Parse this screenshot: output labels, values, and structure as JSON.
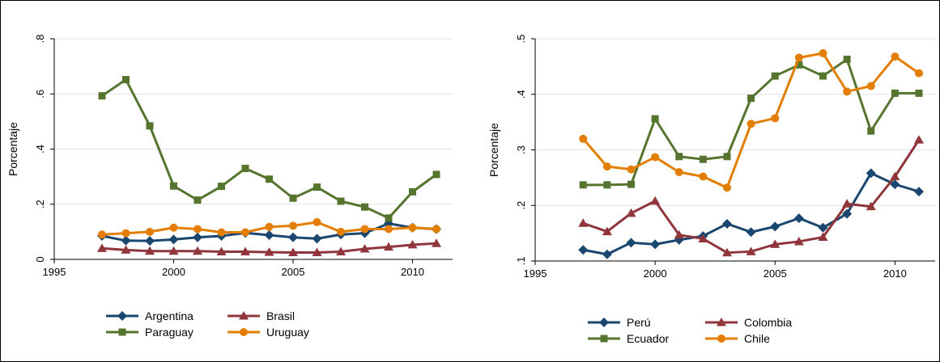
{
  "chart_data": [
    {
      "type": "line",
      "title": "",
      "xlabel": "",
      "ylabel": "Porcentaje",
      "xlim": [
        1995,
        2011
      ],
      "ylim": [
        0,
        0.8
      ],
      "x_ticks": [
        1995,
        2000,
        2005,
        2010
      ],
      "x_tick_labels": [
        "1995",
        "2000",
        "2005",
        "2010"
      ],
      "y_ticks": [
        0,
        0.2,
        0.4,
        0.6,
        0.8
      ],
      "y_tick_labels": [
        "0",
        ".2",
        ".4",
        ".6",
        ".8"
      ],
      "grid": true,
      "legend_position": "bottom",
      "x": [
        1997,
        1998,
        1999,
        2000,
        2001,
        2002,
        2003,
        2004,
        2005,
        2006,
        2007,
        2008,
        2009,
        2010,
        2011
      ],
      "series": [
        {
          "name": "Argentina",
          "color": "#1a476f",
          "marker": "diamond",
          "values": [
            0.085,
            0.068,
            0.067,
            0.072,
            0.08,
            0.085,
            0.096,
            0.088,
            0.08,
            0.075,
            0.09,
            0.095,
            0.13,
            0.115,
            0.11
          ]
        },
        {
          "name": "Brasil",
          "color": "#90353b",
          "marker": "triangle",
          "values": [
            0.04,
            0.034,
            0.03,
            0.03,
            0.03,
            0.028,
            0.028,
            0.026,
            0.025,
            0.025,
            0.028,
            0.038,
            0.045,
            0.053,
            0.058
          ]
        },
        {
          "name": "Paraguay",
          "color": "#55752f",
          "marker": "square",
          "values": [
            0.593,
            0.652,
            0.484,
            0.266,
            0.215,
            0.265,
            0.33,
            0.291,
            0.222,
            0.262,
            0.211,
            0.19,
            0.15,
            0.245,
            0.308
          ]
        },
        {
          "name": "Uruguay",
          "color": "#e37e00",
          "marker": "circle",
          "values": [
            0.09,
            0.095,
            0.1,
            0.115,
            0.11,
            0.098,
            0.098,
            0.118,
            0.122,
            0.135,
            0.1,
            0.11,
            0.11,
            0.115,
            0.11
          ]
        }
      ]
    },
    {
      "type": "line",
      "title": "",
      "xlabel": "",
      "ylabel": "Porcentaje",
      "xlim": [
        1995,
        2011
      ],
      "ylim": [
        0.1,
        0.5
      ],
      "x_ticks": [
        1995,
        2000,
        2005,
        2010
      ],
      "x_tick_labels": [
        "1995",
        "2000",
        "2005",
        "2010"
      ],
      "y_ticks": [
        0.1,
        0.2,
        0.3,
        0.4,
        0.5
      ],
      "y_tick_labels": [
        ".1",
        ".2",
        ".3",
        ".4",
        ".5"
      ],
      "grid": true,
      "legend_position": "bottom",
      "x": [
        1997,
        1998,
        1999,
        2000,
        2001,
        2002,
        2003,
        2004,
        2005,
        2006,
        2007,
        2008,
        2009,
        2010,
        2011
      ],
      "series": [
        {
          "name": "Perú",
          "color": "#1a476f",
          "marker": "diamond",
          "values": [
            0.12,
            0.112,
            0.133,
            0.13,
            0.138,
            0.145,
            0.167,
            0.152,
            0.162,
            0.177,
            0.16,
            0.185,
            0.258,
            0.238,
            0.225
          ]
        },
        {
          "name": "Colombia",
          "color": "#90353b",
          "marker": "triangle",
          "values": [
            0.168,
            0.153,
            0.186,
            0.208,
            0.147,
            0.14,
            0.115,
            0.117,
            0.13,
            0.135,
            0.143,
            0.203,
            0.198,
            0.252,
            0.318
          ]
        },
        {
          "name": "Ecuador",
          "color": "#55752f",
          "marker": "square",
          "values": [
            0.237,
            0.237,
            0.238,
            0.356,
            0.288,
            0.283,
            0.288,
            0.393,
            0.433,
            0.453,
            0.433,
            0.463,
            0.334,
            0.402,
            0.402
          ]
        },
        {
          "name": "Chile",
          "color": "#e37e00",
          "marker": "circle",
          "values": [
            0.32,
            0.27,
            0.265,
            0.287,
            0.26,
            0.252,
            0.232,
            0.347,
            0.357,
            0.466,
            0.474,
            0.405,
            0.415,
            0.468,
            0.438
          ]
        }
      ]
    }
  ]
}
